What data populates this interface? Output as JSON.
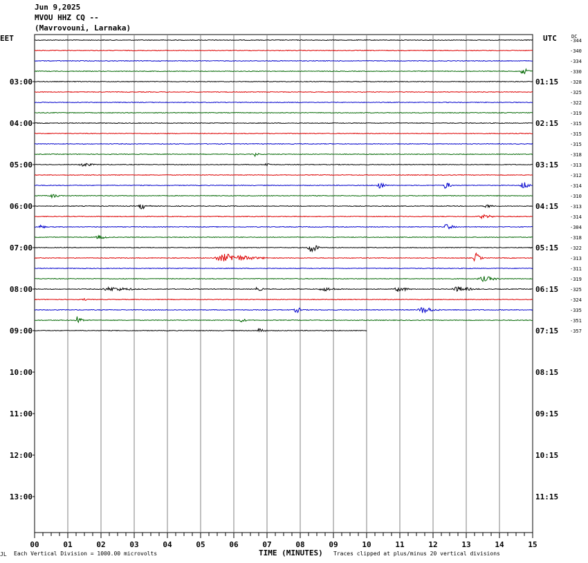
{
  "header": {
    "date": "Jun 9,2025",
    "station": "MVOU HHZ CQ --",
    "location": "(Mavrovouni, Larnaka)"
  },
  "left_timezone": "EET",
  "right_timezone": "UTC",
  "dc_label": "DC",
  "footer": {
    "scale_note": "Each Vertical Division = 1000.00 microvolts",
    "x_title": "TIME (MINUTES)",
    "clip_note": "Traces clipped at plus/minus 20 vertical divisions",
    "corner_mark": "JL"
  },
  "colors": {
    "trace_cycle": [
      "#000000",
      "#dd0000",
      "#0000cc",
      "#006600"
    ],
    "grid": "#808080"
  },
  "chart_data": {
    "type": "line",
    "x_ticks": [
      "00",
      "01",
      "02",
      "03",
      "04",
      "05",
      "06",
      "07",
      "08",
      "09",
      "10",
      "11",
      "12",
      "13",
      "14",
      "15"
    ],
    "xlim": [
      0,
      15
    ],
    "xlabel": "TIME (MINUTES)",
    "left_hour_labels": [
      "03:00",
      "04:00",
      "05:00",
      "06:00",
      "07:00",
      "08:00",
      "09:00",
      "10:00",
      "11:00",
      "12:00",
      "13:00"
    ],
    "right_hour_labels": [
      "01:15",
      "02:15",
      "03:15",
      "04:15",
      "05:15",
      "06:15",
      "07:15",
      "08:15",
      "09:15",
      "10:15",
      "11:15"
    ],
    "dc_offsets": [
      "-344",
      "-340",
      "-334",
      "-330",
      "-328",
      "-325",
      "-322",
      "-319",
      "-315",
      "-315",
      "-315",
      "-318",
      "-313",
      "-312",
      "-314",
      "-310",
      "-313",
      "-314",
      "-304",
      "-318",
      "-322",
      "-313",
      "-311",
      "-319",
      "-325",
      "-324",
      "-335",
      "-351",
      "-357"
    ],
    "traces": {
      "count": 29,
      "last_trace_end_minute": 10,
      "events": [
        {
          "trace": 3,
          "start": 14.6,
          "end": 15.0,
          "amp": 5
        },
        {
          "trace": 11,
          "start": 6.6,
          "end": 6.8,
          "amp": 4
        },
        {
          "trace": 12,
          "start": 1.3,
          "end": 1.9,
          "amp": 3
        },
        {
          "trace": 12,
          "start": 6.9,
          "end": 7.2,
          "amp": 3
        },
        {
          "trace": 14,
          "start": 10.3,
          "end": 10.6,
          "amp": 7
        },
        {
          "trace": 14,
          "start": 12.3,
          "end": 12.6,
          "amp": 6
        },
        {
          "trace": 14,
          "start": 14.6,
          "end": 15.0,
          "amp": 6
        },
        {
          "trace": 15,
          "start": 0.4,
          "end": 0.9,
          "amp": 3
        },
        {
          "trace": 16,
          "start": 3.1,
          "end": 3.5,
          "amp": 5
        },
        {
          "trace": 16,
          "start": 13.5,
          "end": 13.9,
          "amp": 3
        },
        {
          "trace": 17,
          "start": 13.3,
          "end": 14.0,
          "amp": 3
        },
        {
          "trace": 18,
          "start": 0.1,
          "end": 0.4,
          "amp": 3
        },
        {
          "trace": 18,
          "start": 12.3,
          "end": 12.7,
          "amp": 5
        },
        {
          "trace": 19,
          "start": 1.8,
          "end": 2.3,
          "amp": 3
        },
        {
          "trace": 20,
          "start": 8.2,
          "end": 8.6,
          "amp": 9
        },
        {
          "trace": 21,
          "start": 5.3,
          "end": 7.0,
          "amp": 6
        },
        {
          "trace": 21,
          "start": 13.2,
          "end": 13.5,
          "amp": 8
        },
        {
          "trace": 23,
          "start": 13.3,
          "end": 14.1,
          "amp": 4
        },
        {
          "trace": 24,
          "start": 1.9,
          "end": 3.4,
          "amp": 3
        },
        {
          "trace": 24,
          "start": 6.6,
          "end": 7.0,
          "amp": 3
        },
        {
          "trace": 24,
          "start": 8.5,
          "end": 9.3,
          "amp": 3
        },
        {
          "trace": 24,
          "start": 10.8,
          "end": 11.4,
          "amp": 4
        },
        {
          "trace": 24,
          "start": 12.5,
          "end": 13.4,
          "amp": 4
        },
        {
          "trace": 25,
          "start": 1.4,
          "end": 1.7,
          "amp": 2
        },
        {
          "trace": 26,
          "start": 7.8,
          "end": 8.1,
          "amp": 5
        },
        {
          "trace": 26,
          "start": 11.5,
          "end": 12.2,
          "amp": 5
        },
        {
          "trace": 27,
          "start": 1.2,
          "end": 1.5,
          "amp": 6
        },
        {
          "trace": 27,
          "start": 6.1,
          "end": 6.5,
          "amp": 3
        },
        {
          "trace": 28,
          "start": 6.7,
          "end": 7.0,
          "amp": 5
        }
      ]
    }
  }
}
